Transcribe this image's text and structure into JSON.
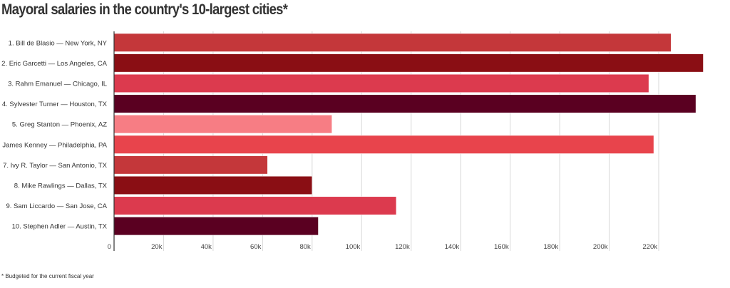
{
  "chart_data": {
    "type": "bar",
    "orientation": "horizontal",
    "title": "Mayoral salaries in the country's 10-largest cities*",
    "footnote": "* Budgeted for the current fiscal year",
    "categories": [
      "1. Bill de Blasio — New York, NY",
      "2. Eric Garcetti — Los Angeles, CA",
      "3. Rahm Emanuel — Chicago, IL",
      "4. Sylvester Turner — Houston, TX",
      "5. Greg Stanton — Phoenix, AZ",
      "6. James Kenney — Philadelphia, PA",
      "7. Ivy R. Taylor — San Antonio, TX",
      "8. Mike Rawlings — Dallas, TX",
      "9. Sam Liccardo — San Jose, CA",
      "10. Stephen Adler — Austin, TX"
    ],
    "values": [
      225000,
      238000,
      216000,
      235000,
      88000,
      218000,
      62000,
      80000,
      114000,
      82500
    ],
    "colors": [
      "#c4373a",
      "#8a0e14",
      "#dc3a4e",
      "#5a0021",
      "#f77d84",
      "#e8444c",
      "#c4373a",
      "#8a0e14",
      "#dc3a4e",
      "#5a0021"
    ],
    "xlim": [
      0,
      240000
    ],
    "xticks": [
      0,
      20000,
      40000,
      60000,
      80000,
      100000,
      120000,
      140000,
      160000,
      180000,
      200000,
      220000
    ],
    "xtick_labels": [
      "0",
      "20k",
      "40k",
      "60k",
      "80k",
      "100k",
      "120k",
      "140k",
      "160k",
      "180k",
      "200k",
      "220k"
    ],
    "grid": "vertical",
    "legend": "none"
  }
}
